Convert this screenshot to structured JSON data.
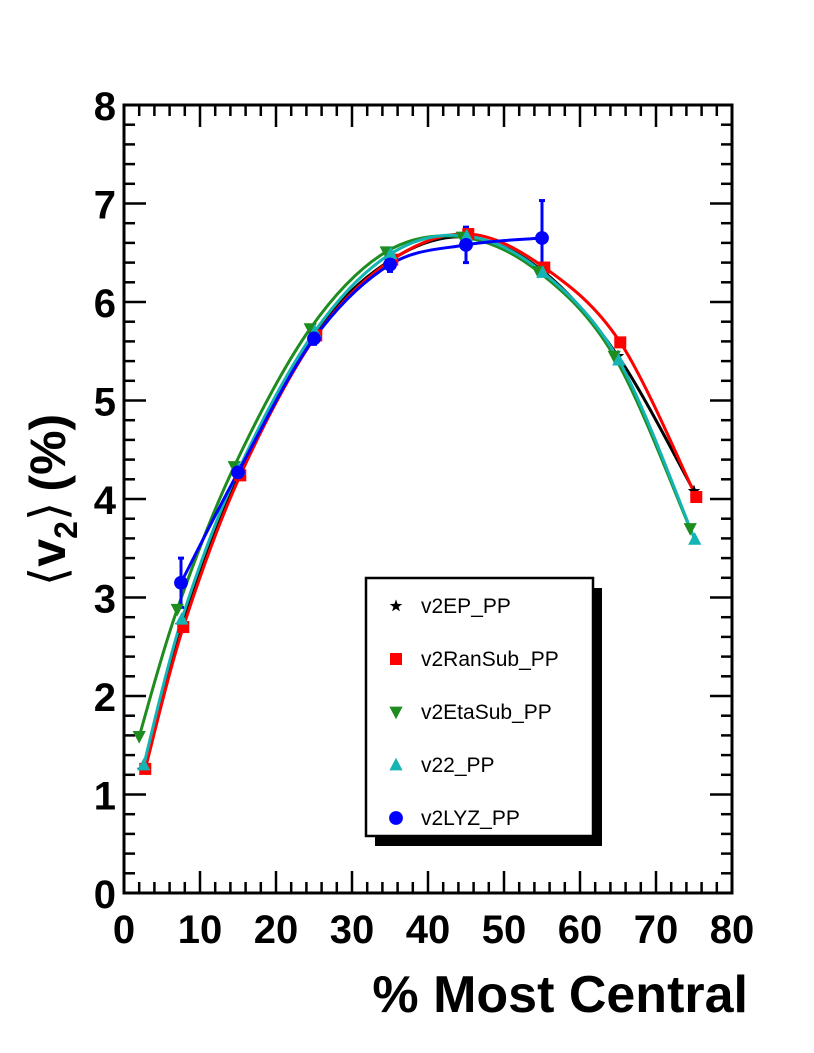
{
  "chart_data": {
    "type": "line",
    "xlabel": "% Most Central",
    "ylabel": "⟨v2⟩ (%)",
    "ylabel_parts": {
      "open": "⟨",
      "symbol": "v",
      "subscript": "2",
      "close": "⟩",
      "unit": "(%)"
    },
    "xlim": [
      0,
      80
    ],
    "ylim": [
      0,
      8
    ],
    "x_ticks": [
      "0",
      "10",
      "20",
      "30",
      "40",
      "50",
      "60",
      "70",
      "80"
    ],
    "y_ticks": [
      "0",
      "1",
      "2",
      "3",
      "4",
      "5",
      "6",
      "7",
      "8"
    ],
    "series": [
      {
        "name": "v2EP_PP",
        "color": "#000000",
        "marker": "star",
        "x": [
          2.5,
          7.5,
          15,
          25,
          35,
          45,
          55,
          65,
          75
        ],
        "y": [
          1.25,
          2.72,
          4.25,
          5.67,
          6.42,
          6.66,
          6.32,
          5.45,
          4.08
        ]
      },
      {
        "name": "v2RanSub_PP",
        "color": "#ff0000",
        "marker": "square",
        "x": [
          2.8,
          7.8,
          15.3,
          25.3,
          35.3,
          45.3,
          55.3,
          65.3,
          75.3
        ],
        "y": [
          1.26,
          2.7,
          4.24,
          5.66,
          6.43,
          6.69,
          6.35,
          5.59,
          4.02
        ]
      },
      {
        "name": "v2EtaSub_PP",
        "color": "#1e8c1e",
        "marker": "triangle-down",
        "x": [
          2.0,
          7.0,
          14.5,
          24.5,
          34.5,
          44.5,
          54.5,
          64.5,
          74.5
        ],
        "y": [
          1.59,
          2.88,
          4.33,
          5.73,
          6.51,
          6.66,
          6.31,
          5.45,
          3.7
        ]
      },
      {
        "name": "v22_PP",
        "color": "#14b4b4",
        "marker": "triangle-up",
        "x": [
          2.6,
          7.6,
          15.1,
          25.1,
          35.1,
          45.1,
          55.1,
          65.1,
          75.1
        ],
        "y": [
          1.3,
          2.78,
          4.3,
          5.7,
          6.49,
          6.67,
          6.3,
          5.41,
          3.59
        ]
      },
      {
        "name": "v2LYZ_PP",
        "color": "#0000ff",
        "marker": "circle",
        "x": [
          7.5,
          15,
          25,
          35,
          45,
          55
        ],
        "y": [
          3.15,
          4.27,
          5.63,
          6.38,
          6.58,
          6.65
        ],
        "err": [
          0.25,
          0.07,
          0.06,
          0.07,
          0.18,
          0.38
        ]
      }
    ]
  }
}
